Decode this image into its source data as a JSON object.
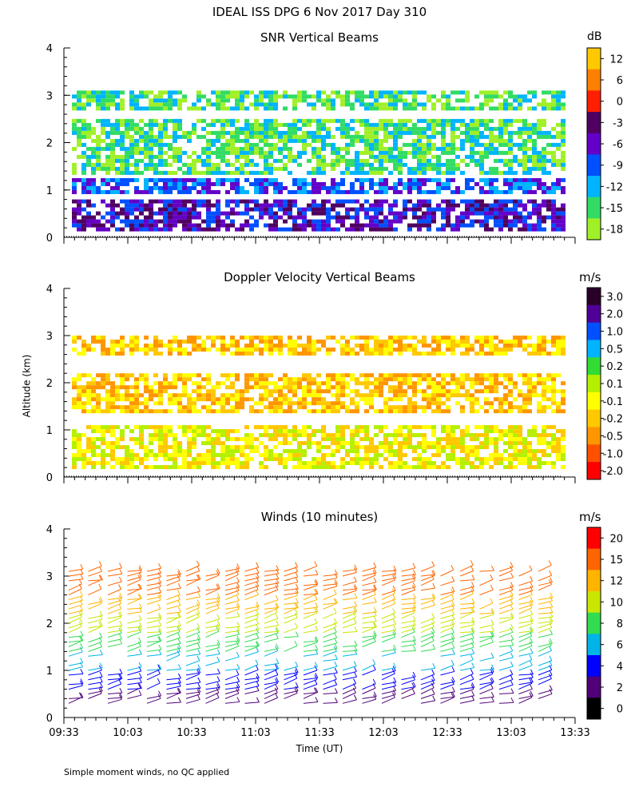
{
  "title": "IDEAL ISS DPG    6 Nov 2017 Day 310",
  "y_axis_label": "Altitude (km)",
  "x_axis_label": "Time (UT)",
  "footnote": "Simple moment winds, no QC applied",
  "chart_data": [
    {
      "type": "heatmap",
      "title": "SNR Vertical Beams",
      "colorbar": {
        "unit": "dB",
        "tick_labels": [
          "12",
          "6",
          "0",
          "-3",
          "-6",
          "-9",
          "-12",
          "-15",
          "-18"
        ],
        "colors": [
          "#ffc800",
          "#ff8000",
          "#ff1e00",
          "#500060",
          "#6400c8",
          "#0050ff",
          "#00b4ff",
          "#32dc64",
          "#a0f028"
        ]
      },
      "ylim": [
        0,
        4
      ],
      "y_ticks": [
        "0",
        "1",
        "2",
        "3",
        "4"
      ],
      "x_ticks": [],
      "bands": [
        {
          "altitude_km": [
            2.7,
            3.1
          ],
          "level_db": -15
        },
        {
          "altitude_km": [
            1.4,
            2.5
          ],
          "level_db": -15
        },
        {
          "altitude_km": [
            0.95,
            1.25
          ],
          "level_db": -9
        },
        {
          "altitude_km": [
            0.2,
            0.8
          ],
          "level_db": -6
        }
      ]
    },
    {
      "type": "heatmap",
      "title": "Doppler Velocity Vertical Beams",
      "colorbar": {
        "unit": "m/s",
        "tick_labels": [
          "3.0",
          "2.0",
          "1.0",
          "0.5",
          "0.2",
          "0.1",
          "-0.1",
          "-0.2",
          "-0.5",
          "-1.0",
          "-2.0"
        ],
        "colors": [
          "#280028",
          "#500096",
          "#0050ff",
          "#00b4ff",
          "#32dc32",
          "#b4f000",
          "#ffff00",
          "#ffc800",
          "#ff9600",
          "#ff5000",
          "#ff0000"
        ]
      },
      "ylim": [
        0,
        4
      ],
      "y_ticks": [
        "0",
        "1",
        "2",
        "3",
        "4"
      ],
      "x_ticks": [],
      "bands": [
        {
          "altitude_km": [
            2.6,
            3.0
          ],
          "value_ms": -0.2
        },
        {
          "altitude_km": [
            1.4,
            2.2
          ],
          "value_ms": -0.2
        },
        {
          "altitude_km": [
            0.2,
            1.1
          ],
          "value_ms": -0.1
        }
      ]
    },
    {
      "type": "scatter",
      "title": "Winds (10 minutes)",
      "colorbar": {
        "unit": "m/s",
        "tick_labels": [
          "20",
          "15",
          "12",
          "10",
          "8",
          "6",
          "4",
          "2",
          "0"
        ],
        "colors": [
          "#ff0000",
          "#ff6400",
          "#ffb400",
          "#c8e600",
          "#32dc50",
          "#00b4e6",
          "#0000ff",
          "#500078",
          "#000000"
        ]
      },
      "ylim": [
        0,
        4
      ],
      "y_ticks": [
        "0",
        "1",
        "2",
        "3",
        "4"
      ],
      "x_ticks": [
        "09:33",
        "10:03",
        "10:33",
        "11:03",
        "11:33",
        "12:03",
        "12:33",
        "13:03",
        "13:33"
      ],
      "wind_speed_by_altitude": [
        {
          "altitude_km": 3.0,
          "speed_ms": 17
        },
        {
          "altitude_km": 2.5,
          "speed_ms": 13
        },
        {
          "altitude_km": 2.0,
          "speed_ms": 10
        },
        {
          "altitude_km": 1.5,
          "speed_ms": 8
        },
        {
          "altitude_km": 0.8,
          "speed_ms": 4
        },
        {
          "altitude_km": 0.3,
          "speed_ms": 2
        }
      ]
    }
  ]
}
